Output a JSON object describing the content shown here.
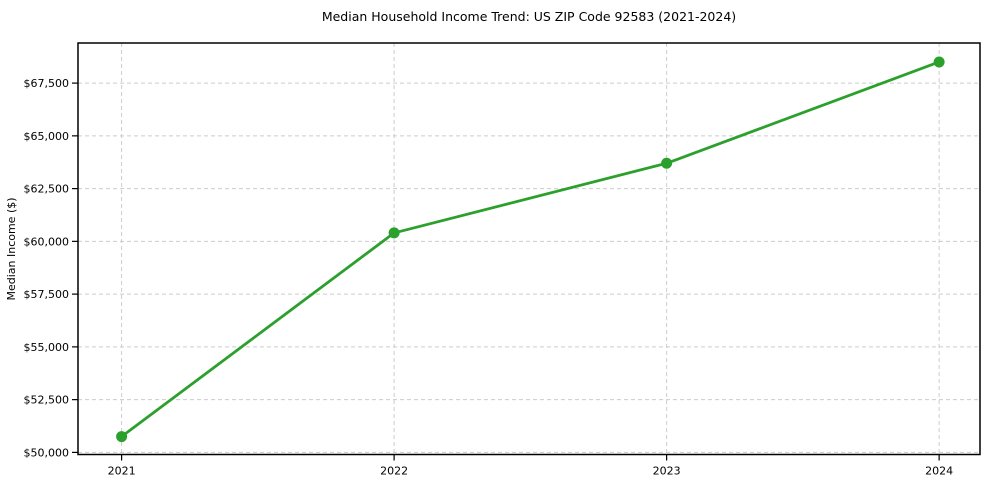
{
  "chart_data": {
    "type": "line",
    "title": "Median Household Income Trend: US ZIP Code 92583 (2021-2024)",
    "xlabel": "",
    "ylabel": "Median Income ($)",
    "categories": [
      "2021",
      "2022",
      "2023",
      "2024"
    ],
    "x": [
      2021,
      2022,
      2023,
      2024
    ],
    "series": [
      {
        "name": "Median Household Income",
        "values": [
          50750,
          60400,
          63700,
          68500
        ]
      }
    ],
    "yticks": [
      50000,
      52500,
      55000,
      57500,
      60000,
      62500,
      65000,
      67500
    ],
    "ytick_labels": [
      "$50,000",
      "$52,500",
      "$55,000",
      "$57,500",
      "$60,000",
      "$62,500",
      "$65,000",
      "$67,500"
    ],
    "xlim": [
      2020.84,
      2024.15
    ],
    "ylim": [
      49900,
      69400
    ],
    "grid": true,
    "grid_style": "dashed",
    "legend_position": "none",
    "colors": {
      "line": "#2ca02c",
      "marker": "#2ca02c",
      "grid": "#cccccc",
      "spine": "#000000",
      "text": "#000000",
      "background": "#ffffff"
    }
  }
}
